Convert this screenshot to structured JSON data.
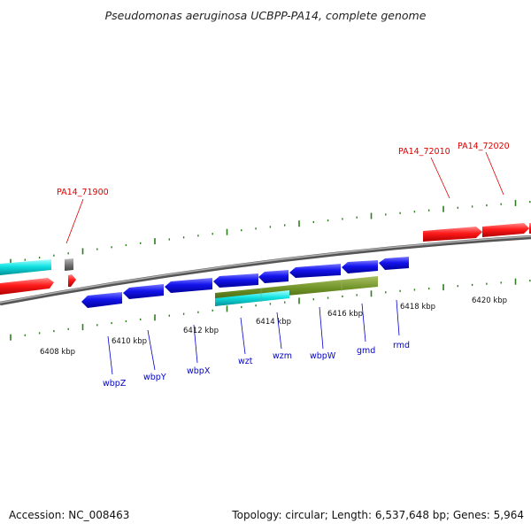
{
  "title": "Pseudomonas aeruginosa UCBPP-PA14, complete genome",
  "footer": {
    "accession": "Accession: NC_008463",
    "topology": "Topology: circular; Length: 6,537,648 bp; Genes: 5,964"
  },
  "colors": {
    "backbone": "#777777",
    "forward_gene": "#ff0000",
    "reverse_gene": "#0000ee",
    "cyan_gene": "#00e0e0",
    "olive_gene": "#6b8e23",
    "grey_gene": "#777777",
    "tick": "#2e7d1e",
    "red_label": "#dd0000",
    "blue_label": "#0000cc"
  },
  "kbp_labels": [
    "6408 kbp",
    "6410 kbp",
    "6412 kbp",
    "6414 kbp",
    "6416 kbp",
    "6418 kbp",
    "6420 kbp"
  ],
  "upper_gene_labels": [
    "PA14_71900",
    "PA14_72010",
    "PA14_72020"
  ],
  "lower_gene_labels": [
    "wbpZ",
    "wbpY",
    "wbpX",
    "wzt",
    "wzm",
    "wbpW",
    "gmd",
    "rmd"
  ]
}
